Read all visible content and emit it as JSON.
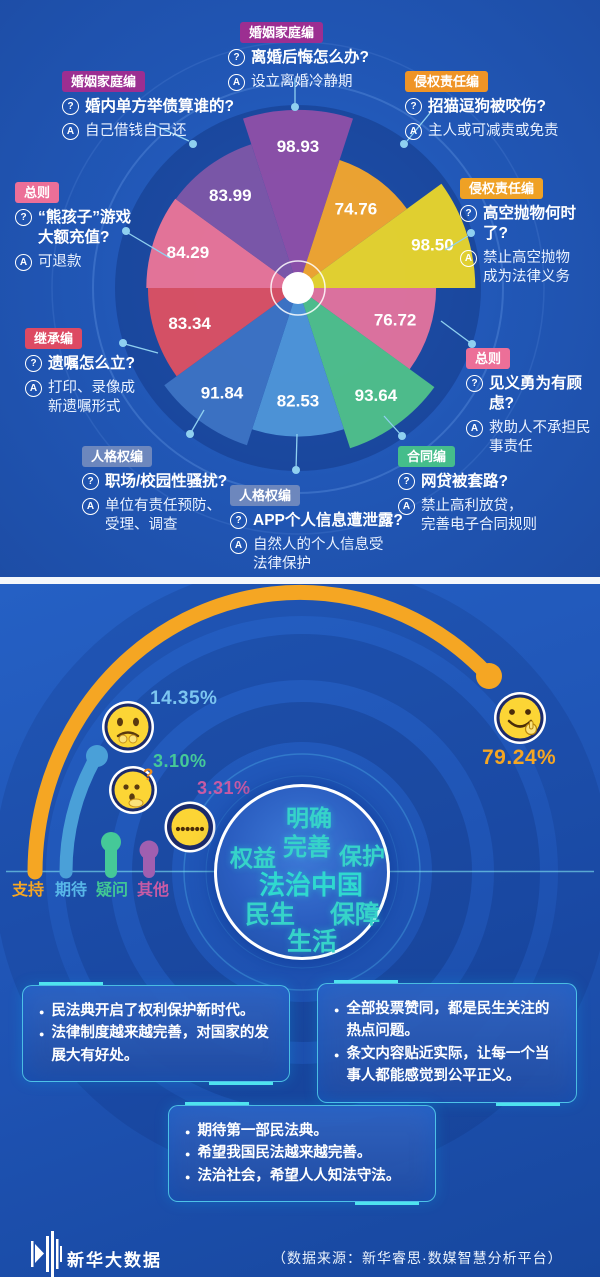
{
  "chart_data": [
    {
      "type": "rose",
      "description": "民法典各编热点问题关注度玫瑰图",
      "slices": [
        {
          "value": 98.93,
          "color": "#8e4fa8",
          "tag": "婚姻家庭编",
          "question": "离婚后悔怎么办?",
          "answer": "设立离婚冷静期"
        },
        {
          "value": 74.76,
          "color": "#f2a62e",
          "tag": "侵权责任编",
          "question": "招猫逗狗被咬伤?",
          "answer": "主人或可减责或免责"
        },
        {
          "value": 98.5,
          "color": "#e8d42c",
          "tag": "侵权责任编",
          "question": "高空抛物何时了?",
          "answer": "禁止高空抛物成为法律义务"
        },
        {
          "value": 76.72,
          "color": "#e2739d",
          "tag": "总则",
          "question": "见义勇为有顾虑?",
          "answer": "救助人不承担民事责任"
        },
        {
          "value": 93.64,
          "color": "#4fc08a",
          "tag": "合同编",
          "question": "网贷被套路?",
          "answer": "禁止高利放贷，完善电子合同规则"
        },
        {
          "value": 82.53,
          "color": "#4e95d9",
          "tag": "人格权编",
          "question": "APP个人信息遭泄露?",
          "answer": "自然人的个人信息受法律保护"
        },
        {
          "value": 91.84,
          "color": "#3c72c4",
          "tag": "人格权编",
          "question": "职场/校园性骚扰?",
          "answer": "单位有责任预防、受理、调查"
        },
        {
          "value": 83.34,
          "color": "#dc5063",
          "tag": "继承编",
          "question": "遗嘱怎么立?",
          "answer": "打印、录像成新遗嘱形式"
        },
        {
          "value": 84.29,
          "color": "#ea7598",
          "tag": "总则",
          "question": "“熊孩子”游戏大额充值?",
          "answer": "可退款"
        },
        {
          "value": 83.99,
          "color": "#7d56a8",
          "tag": "婚姻家庭编",
          "question": "婚内单方举债算谁的?",
          "answer": "自己借钱自己还"
        }
      ]
    },
    {
      "type": "gauge",
      "description": "网民态度占比",
      "categories": [
        "支持",
        "期待",
        "疑问",
        "其他"
      ],
      "values": [
        79.24,
        14.35,
        3.1,
        3.31
      ],
      "display_values": [
        "79.24%",
        "14.35%",
        "3.10%",
        "3.31%"
      ],
      "colors": [
        "#f5a623",
        "#4aa0d8",
        "#45c998",
        "#a05fb0"
      ]
    }
  ],
  "rose_annotations": [
    {
      "tag": "婚姻家庭编",
      "tag_color": "#9c2e91",
      "question": "离婚后悔怎么办?",
      "answer": "设立离婚冷静期"
    },
    {
      "tag": "婚姻家庭编",
      "tag_color": "#9c2e91",
      "question": "婚内单方举债算谁的?",
      "answer": "自己借钱自己还"
    },
    {
      "tag": "侵权责任编",
      "tag_color": "#ef9426",
      "question": "招猫逗狗被咬伤?",
      "answer": "主人或可减责或免责"
    },
    {
      "tag": "总则",
      "tag_color": "#ec6f98",
      "question": "“熊孩子”游戏\n大额充值?",
      "answer": "可退款"
    },
    {
      "tag": "侵权责任编",
      "tag_color": "#efa125",
      "question": "高空抛物何时了?",
      "answer": "禁止高空抛物\n成为法律义务"
    },
    {
      "tag": "继承编",
      "tag_color": "#dd4a63",
      "question": "遗嘱怎么立?",
      "answer": "打印、录像成\n新遗嘱形式"
    },
    {
      "tag": "总则",
      "tag_color": "#ec6f98",
      "question": "见义勇为有顾虑?",
      "answer": "救助人不承担民\n事责任"
    },
    {
      "tag": "人格权编",
      "tag_color": "#6d87bd",
      "question": "职场/校园性骚扰?",
      "answer": "单位有责任预防、\n受理、调查"
    },
    {
      "tag": "合同编",
      "tag_color": "#45bd8b",
      "question": "网贷被套路?",
      "answer": "禁止高利放贷，\n完善电子合同规则"
    },
    {
      "tag": "人格权编",
      "tag_color": "#6d87bd",
      "question": "APP个人信息遭泄露?",
      "answer": "自然人的个人信息受\n法律保护"
    }
  ],
  "wordcloud": {
    "words": [
      "明确",
      "完善",
      "保护",
      "权益",
      "法治中国",
      "民生",
      "保障",
      "生活"
    ]
  },
  "comments": {
    "box1": [
      "民法典开启了权利保护新时代。",
      "法律制度越来越完善，对国家的发展大有好处。"
    ],
    "box2": [
      "全部投票赞同，都是民生关注的热点问题。",
      "条文内容贴近实际，让每一个当事人都能感觉到公平正义。"
    ],
    "box3": [
      "期待第一部民法典。",
      "希望我国民法越来越完善。",
      "法治社会，希望人人知法守法。"
    ]
  },
  "footer": {
    "brand": "新华大数据",
    "source": "（数据来源：新华睿思·数媒智慧分析平台）"
  }
}
